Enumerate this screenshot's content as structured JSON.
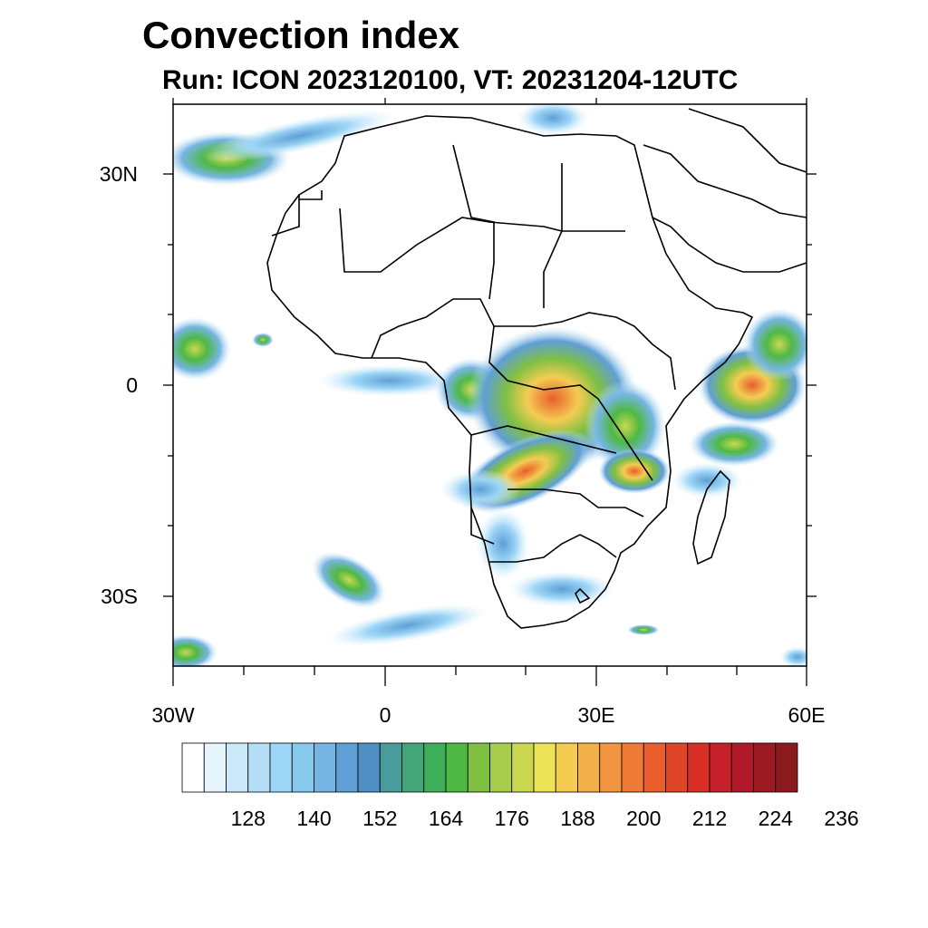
{
  "title": "Convection index",
  "subtitle": "Run: ICON 2023120100,  VT: 20231204-12UTC",
  "map": {
    "extent": {
      "lon_min": -30,
      "lon_max": 60,
      "lat_min": -40,
      "lat_max": 40
    },
    "lat_ticks": [
      {
        "value": 30,
        "label": "30N"
      },
      {
        "value": 0,
        "label": "0"
      },
      {
        "value": -30,
        "label": "30S"
      }
    ],
    "lon_ticks": [
      {
        "value": -30,
        "label": "30W"
      },
      {
        "value": 0,
        "label": "0"
      },
      {
        "value": 30,
        "label": "30E"
      },
      {
        "value": 60,
        "label": "60E"
      }
    ]
  },
  "colorbar": {
    "colors": [
      "#ffffff",
      "#e6f4fc",
      "#cbe8f8",
      "#b4dff7",
      "#9dd6f6",
      "#88c9ee",
      "#76b5e3",
      "#5f9fd6",
      "#4f8fc4",
      "#4a9c9c",
      "#44a47a",
      "#3fae5a",
      "#4fb845",
      "#7fc043",
      "#a8cd4c",
      "#cbd84f",
      "#ece456",
      "#f4cc52",
      "#f3b04a",
      "#f29642",
      "#ee7a36",
      "#e85e2c",
      "#e04528",
      "#d92f27",
      "#c6202a",
      "#b1182a",
      "#9d1a22",
      "#8b1a1c"
    ],
    "labels": [
      "128",
      "140",
      "152",
      "164",
      "176",
      "188",
      "200",
      "212",
      "224",
      "236"
    ]
  }
}
